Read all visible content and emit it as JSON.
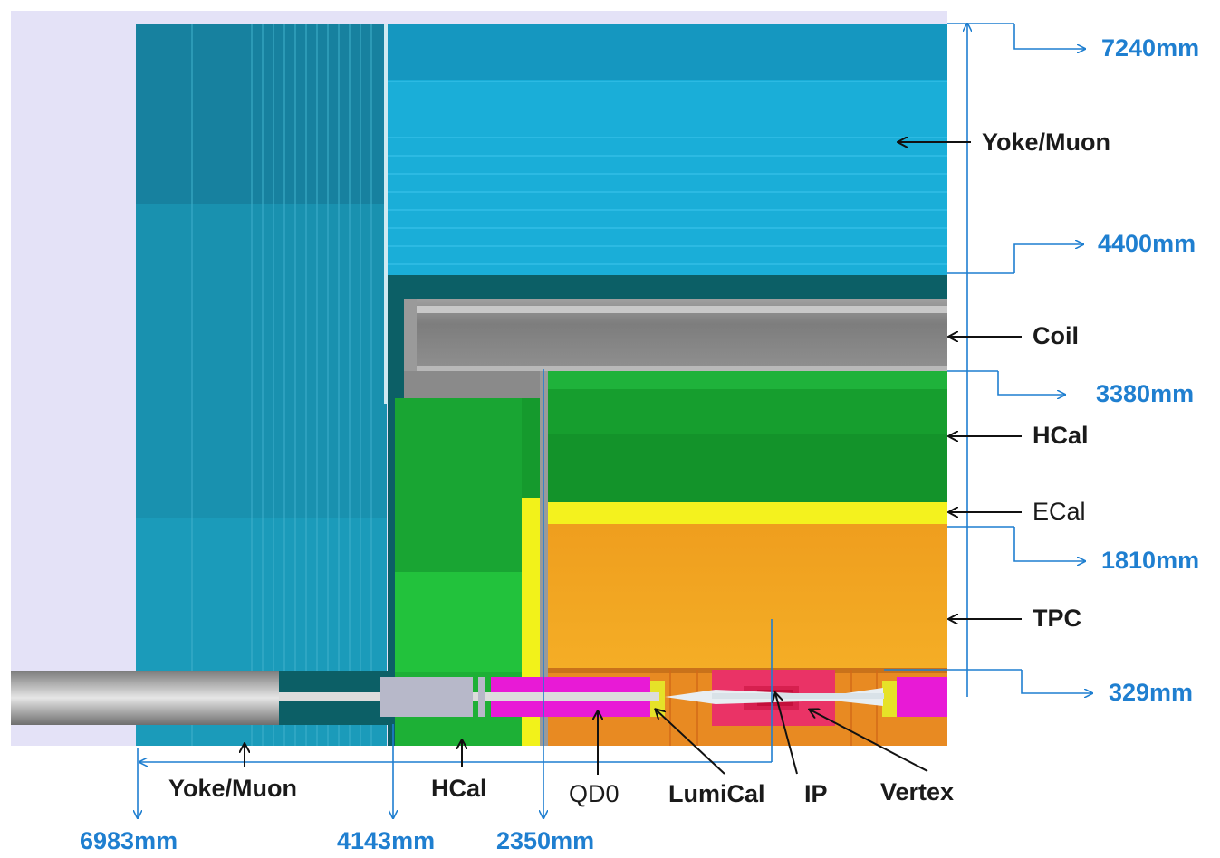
{
  "diagram": {
    "radial_dimensions": [
      "7240mm",
      "4400mm",
      "3380mm",
      "1810mm",
      "329mm"
    ],
    "axial_dimensions": [
      "6983mm",
      "4143mm",
      "2350mm"
    ],
    "side_labels": {
      "yoke_muon": "Yoke/Muon",
      "coil": "Coil",
      "hcal": "HCal",
      "ecal": "ECal",
      "tpc": "TPC"
    },
    "bottom_labels": {
      "yoke_muon": "Yoke/Muon",
      "hcal": "HCal",
      "qd0": "QD0",
      "lumical": "LumiCal",
      "ip": "IP",
      "vertex": "Vertex"
    },
    "colors": {
      "dimension_text": "#1f7fd0",
      "background": "#e4e2f7",
      "yoke_endcap": "#1f8aa6",
      "yoke_barrel": "#19b3dd",
      "coil": "#8c8c8c",
      "hcal": "#169e2e",
      "ecal": "#f2f21a",
      "tpc": "#f2a81f",
      "qd0": "#e81ad6",
      "vertex": "#e8316a"
    }
  }
}
